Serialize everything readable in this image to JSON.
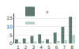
{
  "chart_data": {
    "type": "bar",
    "categories": [
      "1",
      "2",
      "3",
      "4",
      "5",
      "6",
      "7",
      "8"
    ],
    "series": [
      {
        "name": "ν",
        "color": "#607870",
        "values": [
          2.5,
          3.0,
          4.5,
          5.5,
          2.5,
          6.5,
          10.0,
          16.0
        ]
      },
      {
        "name": "γ₁",
        "color": "#b8cec8",
        "values": [
          0.8,
          0.7,
          1.2,
          1.4,
          0.7,
          1.5,
          2.0,
          5.0
        ]
      }
    ],
    "ylim": [
      0,
      18
    ],
    "yticks": [
      0,
      5,
      10,
      15
    ],
    "grid": true,
    "legend": "upper left"
  }
}
